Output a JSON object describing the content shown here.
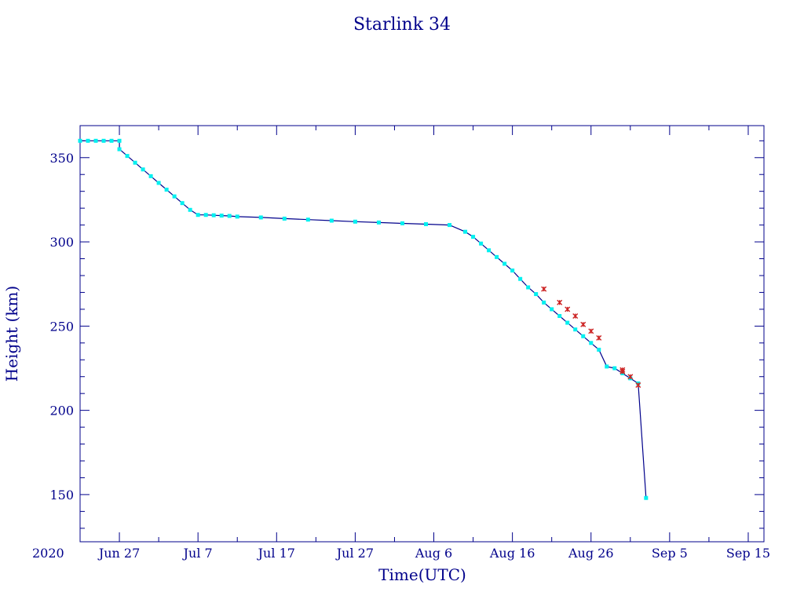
{
  "chart_data": {
    "type": "scatter",
    "title": "Starlink 34",
    "xlabel": "Time(UTC)",
    "ylabel": "Height (km)",
    "year_label": "2020",
    "x_ticks": [
      "Jun 27",
      "Jul 7",
      "Jul 17",
      "Jul 27",
      "Aug 6",
      "Aug 16",
      "Aug 26",
      "Sep 5",
      "Sep 15"
    ],
    "xlim": [
      "2020-06-22",
      "2020-09-17"
    ],
    "y_ticks": [
      150,
      200,
      250,
      300,
      350
    ],
    "ylim": [
      122,
      369
    ],
    "grid": false,
    "colors": {
      "axis": "#00008b",
      "text": "#00008b",
      "trend_line": "#00008b",
      "main_points": "#00f0f0",
      "flagged_points": "#cc2222"
    },
    "series": [
      {
        "x": [
          "2020-06-22",
          "2020-06-23",
          "2020-06-24",
          "2020-06-25",
          "2020-06-26",
          "2020-06-27",
          "2020-06-27",
          "2020-06-28",
          "2020-06-29",
          "2020-06-30",
          "2020-07-01",
          "2020-07-02",
          "2020-07-03",
          "2020-07-04",
          "2020-07-05",
          "2020-07-06",
          "2020-07-07",
          "2020-07-08",
          "2020-07-09",
          "2020-07-10",
          "2020-07-11",
          "2020-07-12",
          "2020-07-15",
          "2020-07-18",
          "2020-07-21",
          "2020-07-24",
          "2020-07-27",
          "2020-07-30",
          "2020-08-02",
          "2020-08-05",
          "2020-08-08",
          "2020-08-10",
          "2020-08-11",
          "2020-08-12",
          "2020-08-13",
          "2020-08-14",
          "2020-08-15",
          "2020-08-16",
          "2020-08-17",
          "2020-08-18",
          "2020-08-19",
          "2020-08-20",
          "2020-08-21",
          "2020-08-22",
          "2020-08-23",
          "2020-08-24",
          "2020-08-25",
          "2020-08-26",
          "2020-08-27",
          "2020-08-28",
          "2020-08-29",
          "2020-08-30",
          "2020-08-31",
          "2020-09-01",
          "2020-09-02"
        ],
        "y": [
          360,
          360,
          360,
          360,
          360,
          360,
          355,
          351,
          347,
          343,
          339,
          335,
          331,
          327,
          323,
          319,
          316,
          316,
          315.8,
          315.6,
          315.4,
          315,
          314.5,
          313.8,
          313.2,
          312.6,
          312,
          311.5,
          311,
          310.5,
          310,
          306,
          303,
          299,
          295,
          291,
          287,
          283,
          278,
          273,
          269,
          264,
          260,
          256,
          252,
          248,
          244,
          240,
          236,
          226,
          225,
          222,
          219,
          216,
          148
        ]
      },
      {
        "x": [
          "2020-08-20",
          "2020-08-22",
          "2020-08-23",
          "2020-08-24",
          "2020-08-25",
          "2020-08-26",
          "2020-08-27",
          "2020-08-30",
          "2020-08-30",
          "2020-08-31",
          "2020-09-01"
        ],
        "y": [
          272,
          264,
          260,
          256,
          251,
          247,
          243,
          224,
          223,
          220,
          215
        ]
      }
    ]
  }
}
